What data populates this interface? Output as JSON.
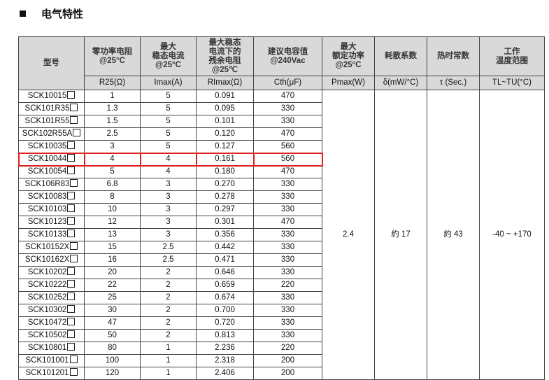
{
  "section_title": "电气特性",
  "headers": {
    "model": "型号",
    "r25": "零功率电阻\n@25°C",
    "imax": "最大\n稳态电流\n@25°C",
    "rimax": "最大稳态\n电流下的\n残余电阻\n@25℃",
    "cth": "建议电容值\n@240Vac",
    "pmax": "最大\n额定功率\n@25°C",
    "delta": "耗散系数",
    "tau": "热时常数",
    "temp": "工作\n温度范围"
  },
  "units": {
    "r25": "R25(Ω)",
    "imax": "Imax(A)",
    "rimax": "RImax(Ω)",
    "cth": "Cth(μF)",
    "pmax": "Pmax(W)",
    "delta": "δ(mW/°C)",
    "tau": "τ (Sec.)",
    "temp": "TL~TU(°C)"
  },
  "shared": {
    "pmax": "2.4",
    "delta": "約 17",
    "tau": "約 43",
    "temp": "-40 ~ +170"
  },
  "highlighted_row": "SCK10044",
  "highlight_color": "#e02020",
  "rows": [
    [
      "SCK10015",
      "1",
      "5",
      "0.091",
      "470"
    ],
    [
      "SCK101R35",
      "1.3",
      "5",
      "0.095",
      "330"
    ],
    [
      "SCK101R55",
      "1.5",
      "5",
      "0.101",
      "330"
    ],
    [
      "SCK102R55A",
      "2.5",
      "5",
      "0.120",
      "470"
    ],
    [
      "SCK10035",
      "3",
      "5",
      "0.127",
      "560"
    ],
    [
      "SCK10044",
      "4",
      "4",
      "0.161",
      "560"
    ],
    [
      "SCK10054",
      "5",
      "4",
      "0.180",
      "470"
    ],
    [
      "SCK106R83",
      "6.8",
      "3",
      "0.270",
      "330"
    ],
    [
      "SCK10083",
      "8",
      "3",
      "0.278",
      "330"
    ],
    [
      "SCK10103",
      "10",
      "3",
      "0.297",
      "330"
    ],
    [
      "SCK10123",
      "12",
      "3",
      "0.301",
      "470"
    ],
    [
      "SCK10133",
      "13",
      "3",
      "0.356",
      "330"
    ],
    [
      "SCK10152X",
      "15",
      "2.5",
      "0.442",
      "330"
    ],
    [
      "SCK10162X",
      "16",
      "2.5",
      "0.471",
      "330"
    ],
    [
      "SCK10202",
      "20",
      "2",
      "0.646",
      "330"
    ],
    [
      "SCK10222",
      "22",
      "2",
      "0.659",
      "220"
    ],
    [
      "SCK10252",
      "25",
      "2",
      "0.674",
      "330"
    ],
    [
      "SCK10302",
      "30",
      "2",
      "0.700",
      "330"
    ],
    [
      "SCK10472",
      "47",
      "2",
      "0.720",
      "330"
    ],
    [
      "SCK10502",
      "50",
      "2",
      "0.813",
      "330"
    ],
    [
      "SCK10801",
      "80",
      "1",
      "2.236",
      "220"
    ],
    [
      "SCK101001",
      "100",
      "1",
      "2.318",
      "200"
    ],
    [
      "SCK101201",
      "120",
      "1",
      "2.406",
      "200"
    ]
  ]
}
